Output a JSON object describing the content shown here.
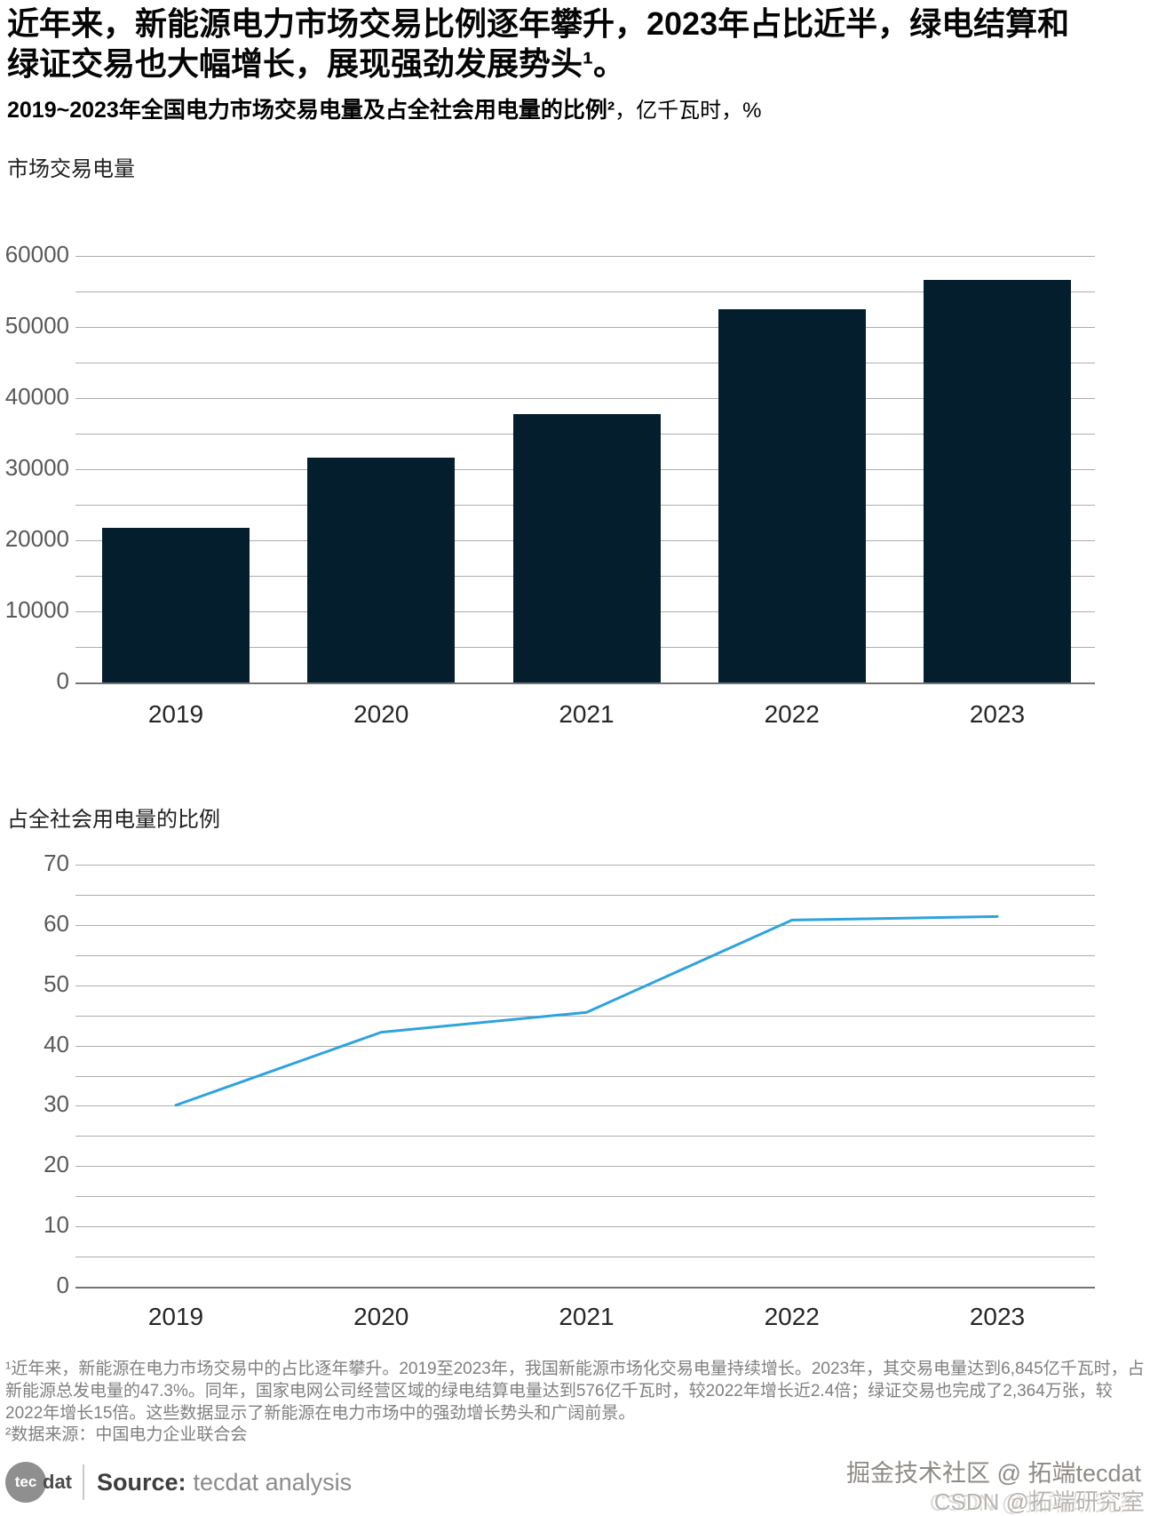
{
  "headline": "近年来，新能源电力市场交易比例逐年攀升，2023年占比近半，绿电结算和绿证交易也大幅增长，展现强劲发展势头¹。",
  "exhibit": {
    "title_bold": "2019~2023年全国电力市场交易电量及占全社会用电量的比例²",
    "title_units": "，亿千瓦时，%"
  },
  "chart_data": [
    {
      "type": "bar",
      "title": "市场交易电量",
      "categories": [
        "2019",
        "2020",
        "2021",
        "2022",
        "2023"
      ],
      "values": [
        21771,
        31663,
        37787,
        52543,
        56679
      ],
      "ylim": [
        0,
        60000
      ],
      "ytick_labels": [
        "0",
        "10000",
        "20000",
        "30000",
        "40000",
        "50000",
        "60000"
      ],
      "gridline_step": 5000,
      "grid": true,
      "legend": "none",
      "bar_color": "#051e2d",
      "units": "亿千瓦时"
    },
    {
      "type": "line",
      "title": "占全社会用电量的比例",
      "categories": [
        "2019",
        "2020",
        "2021",
        "2022",
        "2023"
      ],
      "values": [
        30.1,
        42.2,
        45.5,
        60.8,
        61.4
      ],
      "ylim": [
        0,
        70
      ],
      "ytick_labels": [
        "0",
        "10",
        "20",
        "30",
        "40",
        "50",
        "60",
        "70"
      ],
      "gridline_step": 5,
      "grid": true,
      "legend": "none",
      "line_color": "#2fa3dc",
      "units": "%"
    }
  ],
  "footnotes": {
    "note1": "¹近年来，新能源在电力市场交易中的占比逐年攀升。2019至2023年，我国新能源市场化交易电量持续增长。2023年，其交易电量达到6,845亿千瓦时，占新能源总发电量的47.3%。同年，国家电网公司经营区域的绿电结算电量达到576亿千瓦时，较2022年增长近2.4倍；绿证交易也完成了2,364万张，较2022年增长15倍。这些数据显示了新能源在电力市场中的强劲增长势头和广阔前景。",
    "note2": "²数据来源：中国电力企业联合会"
  },
  "footer": {
    "logo_circle_text": "tec",
    "logo_suffix": "dat",
    "source_label": "Source:",
    "source_value": "tecdat analysis"
  },
  "watermarks": {
    "wm1": "掘金技术社区 @ 拓端tecdat",
    "wm2": "CSDN @拓端研究室"
  }
}
